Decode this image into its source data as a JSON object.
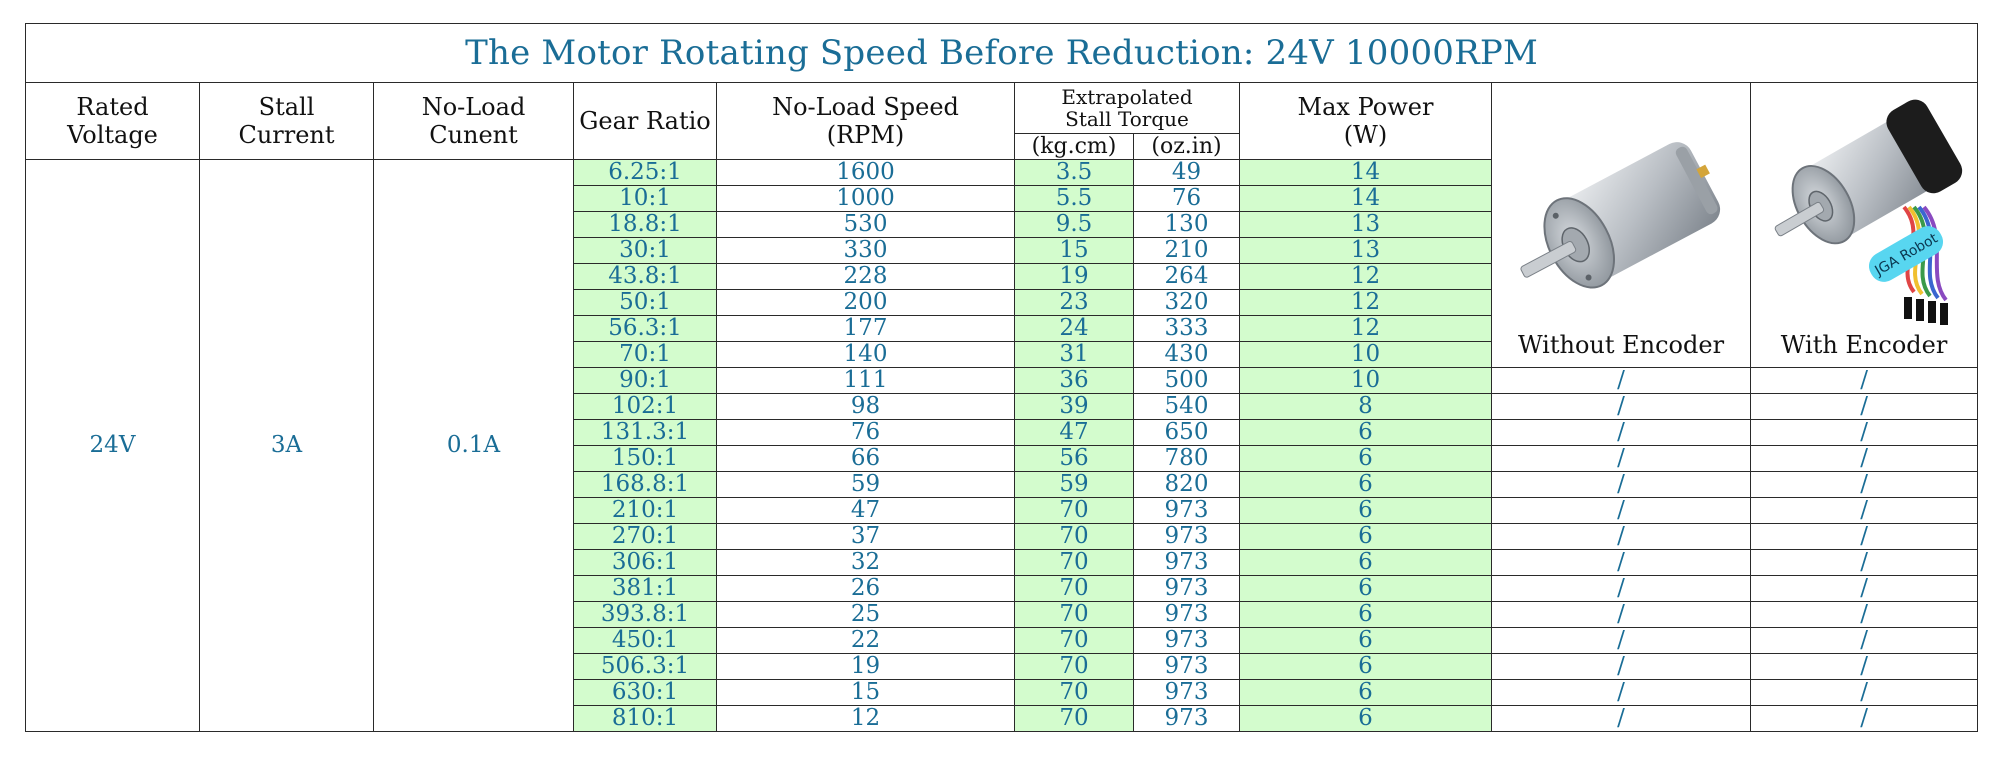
{
  "title": "The Motor Rotating Speed Before Reduction: 24V 10000RPM",
  "headers": {
    "rated_voltage": [
      "Rated",
      "Voltage"
    ],
    "stall_current": [
      "Stall",
      "Current"
    ],
    "no_load_current": [
      "No-Load",
      "Cunent"
    ],
    "gear_ratio": "Gear Ratio",
    "no_load_speed": [
      "No-Load Speed",
      "(RPM)"
    ],
    "torque_group": [
      "Extrapolated",
      "Stall Torque"
    ],
    "torque_unit_kg": "(kg.cm)",
    "torque_unit_oz": "(oz.in)",
    "max_power": [
      "Max Power",
      "(W)"
    ]
  },
  "values": {
    "rated_voltage": "24V",
    "stall_current": "3A",
    "no_load_current": "0.1A"
  },
  "images": {
    "without_encoder_caption": "Without Encoder",
    "with_encoder_caption": "With Encoder",
    "encoder_label_text": "JGA Robot"
  },
  "colors": {
    "title": "#1a6d96",
    "data_text": "#1a6d96",
    "highlight": "#ff0000",
    "green_fill": "#d3fccd"
  },
  "rows": [
    {
      "gear_ratio": "6.25:1",
      "speed": "1600",
      "kgcm": "3.5",
      "ozin": "49",
      "power": "14",
      "without": "",
      "with": ""
    },
    {
      "gear_ratio": "10:1",
      "speed": "1000",
      "kgcm": "5.5",
      "ozin": "76",
      "power": "14",
      "without": "",
      "with": ""
    },
    {
      "gear_ratio": "18.8:1",
      "speed": "530",
      "kgcm": "9.5",
      "ozin": "130",
      "power": "13",
      "without": "",
      "with": ""
    },
    {
      "gear_ratio": "30:1",
      "speed": "330",
      "kgcm": "15",
      "ozin": "210",
      "power": "13",
      "without": "",
      "with": ""
    },
    {
      "gear_ratio": "43.8:1",
      "speed": "228",
      "kgcm": "19",
      "ozin": "264",
      "power": "12",
      "without": "",
      "with": ""
    },
    {
      "gear_ratio": "50:1",
      "speed": "200",
      "kgcm": "23",
      "ozin": "320",
      "power": "12",
      "without": "",
      "with": ""
    },
    {
      "gear_ratio": "56.3:1",
      "speed": "177",
      "kgcm": "24",
      "ozin": "333",
      "power": "12",
      "without": "",
      "with": ""
    },
    {
      "gear_ratio": "70:1",
      "speed": "140",
      "kgcm": "31",
      "ozin": "430",
      "power": "10",
      "without": "",
      "with": ""
    },
    {
      "gear_ratio": "90:1",
      "speed": "111",
      "kgcm": "36",
      "ozin": "500",
      "power": "10",
      "without": "/",
      "with": "/"
    },
    {
      "gear_ratio": "102:1",
      "speed": "98",
      "kgcm": "39",
      "ozin": "540",
      "power": "8",
      "without": "/",
      "with": "/"
    },
    {
      "gear_ratio": "131.3:1",
      "speed": "76",
      "kgcm": "47",
      "ozin": "650",
      "power": "6",
      "without": "/",
      "with": "/"
    },
    {
      "gear_ratio": "150:1",
      "speed": "66",
      "kgcm": "56",
      "ozin": "780",
      "power": "6",
      "without": "/",
      "with": "/"
    },
    {
      "gear_ratio": "168.8:1",
      "speed": "59",
      "kgcm": "59",
      "ozin": "820",
      "power": "6",
      "without": "/",
      "with": "/"
    },
    {
      "gear_ratio": "210:1",
      "speed": "47",
      "kgcm": "70",
      "ozin": "973",
      "power": "6",
      "without": "/",
      "with": "/"
    },
    {
      "gear_ratio": "270:1",
      "speed": "37",
      "kgcm": "70",
      "ozin": "973",
      "power": "6",
      "without": "/",
      "with": "/"
    },
    {
      "gear_ratio": "306:1",
      "speed": "32",
      "kgcm": "70",
      "ozin": "973",
      "power": "6",
      "without": "/",
      "with": "/"
    },
    {
      "gear_ratio": "381:1",
      "speed": "26",
      "kgcm": "70",
      "ozin": "973",
      "power": "6",
      "without": "/",
      "with": "/"
    },
    {
      "gear_ratio": "393.8:1",
      "speed": "25",
      "kgcm": "70",
      "ozin": "973",
      "power": "6",
      "without": "/",
      "with": "/"
    },
    {
      "gear_ratio": "450:1",
      "speed": "22",
      "kgcm": "70",
      "ozin": "973",
      "power": "6",
      "without": "/",
      "with": "/"
    },
    {
      "gear_ratio": "506.3:1",
      "speed": "19",
      "kgcm": "70",
      "ozin": "973",
      "power": "6",
      "without": "/",
      "with": "/"
    },
    {
      "gear_ratio": "630:1",
      "speed": "15",
      "kgcm": "70",
      "ozin": "973",
      "power": "6",
      "without": "/",
      "with": "/"
    },
    {
      "gear_ratio": "810:1",
      "speed": "12",
      "kgcm": "70",
      "ozin": "973",
      "power": "6",
      "without": "/",
      "with": "/"
    }
  ]
}
